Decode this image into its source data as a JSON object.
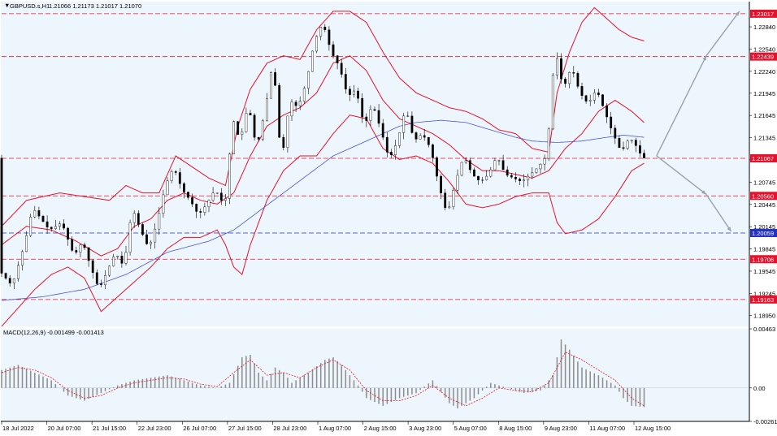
{
  "header": {
    "symbol": "GBPUSD.s,H1",
    "ohlc": "1.21066 1.21173 1.21017 1.21070"
  },
  "macd_panel": {
    "label": "MACD(12,26,9) -0.001499 -0.001413"
  },
  "colors": {
    "panel_bg": "#eef6fd",
    "bollinger": "#e8102a",
    "ma": "#4a55d4",
    "price_level": "#e8102a",
    "support_blue": "#2331c8",
    "arrows": "#9aa0ad",
    "candles": "#000000",
    "macd_signal": "#e8102a",
    "macd_hist": "#8c8c8c"
  },
  "chart_data": [
    {
      "type": "line",
      "subtype": "candlestick",
      "title": "GBPUSD.s,H1",
      "ylim": [
        1.188,
        1.2318
      ],
      "grid": false,
      "price_ticks": [
        "1.22840",
        "1.22540",
        "1.22240",
        "1.21945",
        "1.21645",
        "1.21345",
        "1.21045",
        "1.20745",
        "1.20445",
        "1.20145",
        "1.19845",
        "1.19545",
        "1.19245",
        "1.18950"
      ],
      "time_labels": [
        "18 Jul 2022",
        "20 Jul 07:00",
        "21 Jul 15:00",
        "22 Jul 23:00",
        "26 Jul 07:00",
        "27 Jul 15:00",
        "28 Jul 23:00",
        "1 Aug 07:00",
        "2 Aug 15:00",
        "3 Aug 23:00",
        "5 Aug 07:00",
        "8 Aug 15:00",
        "9 Aug 23:00",
        "11 Aug 07:00",
        "12 Aug 15:00"
      ],
      "levels": [
        {
          "value": 1.23017,
          "label": "1.23017",
          "style": "red"
        },
        {
          "value": 1.22439,
          "label": "1.22439",
          "style": "red"
        },
        {
          "value": 1.21067,
          "label": "1.21067",
          "style": "black"
        },
        {
          "value": 1.2056,
          "label": "1.20560",
          "style": "red"
        },
        {
          "value": 1.20059,
          "label": "1.20059",
          "style": "blue"
        },
        {
          "value": 1.19706,
          "label": "1.19706",
          "style": "red"
        },
        {
          "value": 1.19163,
          "label": "1.19163",
          "style": "red"
        }
      ],
      "price_path": [
        [
          0,
          1.1955
        ],
        [
          3,
          1.1935
        ],
        [
          6,
          1.199
        ],
        [
          8,
          1.204
        ],
        [
          10,
          1.2025
        ],
        [
          12,
          1.201
        ],
        [
          15,
          1.202
        ],
        [
          18,
          1.1975
        ],
        [
          20,
          1.1995
        ],
        [
          22,
          1.196
        ],
        [
          24,
          1.193
        ],
        [
          26,
          1.1955
        ],
        [
          28,
          1.198
        ],
        [
          30,
          1.196
        ],
        [
          32,
          1.204
        ],
        [
          34,
          1.201
        ],
        [
          36,
          1.1985
        ],
        [
          38,
          1.202
        ],
        [
          40,
          1.207
        ],
        [
          42,
          1.2095
        ],
        [
          44,
          1.2065
        ],
        [
          46,
          1.205
        ],
        [
          48,
          1.203
        ],
        [
          50,
          1.2045
        ],
        [
          52,
          1.2065
        ],
        [
          54,
          1.2045
        ],
        [
          55,
          1.206
        ],
        [
          56,
          1.2165
        ],
        [
          58,
          1.213
        ],
        [
          60,
          1.218
        ],
        [
          62,
          1.212
        ],
        [
          64,
          1.217
        ],
        [
          66,
          1.224
        ],
        [
          68,
          1.21
        ],
        [
          70,
          1.2185
        ],
        [
          72,
          1.2175
        ],
        [
          74,
          1.221
        ],
        [
          76,
          1.2265
        ],
        [
          78,
          1.229
        ],
        [
          80,
          1.225
        ],
        [
          82,
          1.223
        ],
        [
          84,
          1.219
        ],
        [
          86,
          1.22
        ],
        [
          88,
          1.215
        ],
        [
          90,
          1.218
        ],
        [
          92,
          1.2145
        ],
        [
          94,
          1.2105
        ],
        [
          96,
          1.213
        ],
        [
          98,
          1.2175
        ],
        [
          100,
          1.213
        ],
        [
          102,
          1.214
        ],
        [
          104,
          1.212
        ],
        [
          106,
          1.207
        ],
        [
          108,
          1.203
        ],
        [
          110,
          1.2075
        ],
        [
          112,
          1.211
        ],
        [
          114,
          1.2085
        ],
        [
          116,
          1.2075
        ],
        [
          118,
          1.2085
        ],
        [
          120,
          1.211
        ],
        [
          122,
          1.2085
        ],
        [
          124,
          1.208
        ],
        [
          126,
          1.2075
        ],
        [
          128,
          1.2085
        ],
        [
          130,
          1.2095
        ],
        [
          132,
          1.211
        ],
        [
          134,
          1.2255
        ],
        [
          136,
          1.22
        ],
        [
          138,
          1.223
        ],
        [
          140,
          1.2195
        ],
        [
          142,
          1.218
        ],
        [
          144,
          1.22
        ],
        [
          146,
          1.217
        ],
        [
          148,
          1.214
        ],
        [
          150,
          1.2115
        ],
        [
          152,
          1.2135
        ],
        [
          154,
          1.212
        ],
        [
          155,
          1.2107
        ]
      ],
      "bollinger_upper": [
        [
          0,
          1.2015
        ],
        [
          6,
          1.205
        ],
        [
          14,
          1.206
        ],
        [
          20,
          1.2055
        ],
        [
          26,
          1.205
        ],
        [
          30,
          1.207
        ],
        [
          34,
          1.206
        ],
        [
          38,
          1.206
        ],
        [
          42,
          1.211
        ],
        [
          46,
          1.2095
        ],
        [
          50,
          1.208
        ],
        [
          54,
          1.207
        ],
        [
          57,
          1.215
        ],
        [
          60,
          1.22
        ],
        [
          64,
          1.2235
        ],
        [
          68,
          1.2245
        ],
        [
          72,
          1.224
        ],
        [
          76,
          1.228
        ],
        [
          80,
          1.2305
        ],
        [
          84,
          1.2305
        ],
        [
          88,
          1.229
        ],
        [
          92,
          1.225
        ],
        [
          96,
          1.2215
        ],
        [
          100,
          1.2195
        ],
        [
          104,
          1.2185
        ],
        [
          108,
          1.2175
        ],
        [
          112,
          1.217
        ],
        [
          116,
          1.216
        ],
        [
          120,
          1.2145
        ],
        [
          124,
          1.214
        ],
        [
          128,
          1.212
        ],
        [
          132,
          1.2115
        ],
        [
          134,
          1.2195
        ],
        [
          137,
          1.225
        ],
        [
          140,
          1.229
        ],
        [
          143,
          1.231
        ],
        [
          146,
          1.2295
        ],
        [
          149,
          1.228
        ],
        [
          152,
          1.227
        ],
        [
          155,
          1.2265
        ]
      ],
      "bollinger_middle": [
        [
          0,
          1.199
        ],
        [
          6,
          1.2015
        ],
        [
          12,
          1.201
        ],
        [
          18,
          1.1995
        ],
        [
          24,
          1.1975
        ],
        [
          28,
          1.1985
        ],
        [
          32,
          1.2015
        ],
        [
          36,
          1.2025
        ],
        [
          40,
          1.205
        ],
        [
          44,
          1.206
        ],
        [
          48,
          1.205
        ],
        [
          52,
          1.2045
        ],
        [
          56,
          1.206
        ],
        [
          60,
          1.211
        ],
        [
          64,
          1.215
        ],
        [
          68,
          1.2165
        ],
        [
          72,
          1.2175
        ],
        [
          76,
          1.2195
        ],
        [
          80,
          1.2235
        ],
        [
          84,
          1.2245
        ],
        [
          88,
          1.2225
        ],
        [
          92,
          1.2185
        ],
        [
          96,
          1.216
        ],
        [
          100,
          1.215
        ],
        [
          104,
          1.214
        ],
        [
          108,
          1.2125
        ],
        [
          112,
          1.2105
        ],
        [
          116,
          1.209
        ],
        [
          120,
          1.209
        ],
        [
          124,
          1.2085
        ],
        [
          128,
          1.208
        ],
        [
          132,
          1.209
        ],
        [
          136,
          1.212
        ],
        [
          140,
          1.214
        ],
        [
          144,
          1.217
        ],
        [
          148,
          1.2185
        ],
        [
          152,
          1.217
        ],
        [
          155,
          1.2155
        ]
      ],
      "bollinger_lower": [
        [
          0,
          1.188
        ],
        [
          4,
          1.1905
        ],
        [
          8,
          1.193
        ],
        [
          12,
          1.195
        ],
        [
          16,
          1.196
        ],
        [
          20,
          1.1945
        ],
        [
          24,
          1.19
        ],
        [
          28,
          1.192
        ],
        [
          32,
          1.194
        ],
        [
          36,
          1.196
        ],
        [
          40,
          1.1985
        ],
        [
          44,
          1.2
        ],
        [
          48,
          1.2
        ],
        [
          52,
          1.201
        ],
        [
          54,
          1.199
        ],
        [
          56,
          1.196
        ],
        [
          58,
          1.195
        ],
        [
          60,
          1.199
        ],
        [
          64,
          1.205
        ],
        [
          68,
          1.209
        ],
        [
          72,
          1.211
        ],
        [
          76,
          1.211
        ],
        [
          80,
          1.214
        ],
        [
          84,
          1.2165
        ],
        [
          88,
          1.216
        ],
        [
          92,
          1.212
        ],
        [
          96,
          1.2105
        ],
        [
          100,
          1.211
        ],
        [
          104,
          1.21
        ],
        [
          108,
          1.2075
        ],
        [
          112,
          1.2045
        ],
        [
          116,
          1.204
        ],
        [
          120,
          1.2045
        ],
        [
          124,
          1.2055
        ],
        [
          128,
          1.206
        ],
        [
          132,
          1.206
        ],
        [
          134,
          1.202
        ],
        [
          136,
          1.2005
        ],
        [
          140,
          1.201
        ],
        [
          144,
          1.2025
        ],
        [
          148,
          1.2055
        ],
        [
          152,
          1.209
        ],
        [
          155,
          1.21
        ]
      ],
      "ma_line": [
        [
          0,
          1.1915
        ],
        [
          10,
          1.192
        ],
        [
          20,
          1.193
        ],
        [
          30,
          1.195
        ],
        [
          40,
          1.198
        ],
        [
          50,
          1.1995
        ],
        [
          56,
          1.201
        ],
        [
          62,
          1.2035
        ],
        [
          68,
          1.206
        ],
        [
          74,
          1.2085
        ],
        [
          80,
          1.211
        ],
        [
          86,
          1.2125
        ],
        [
          92,
          1.214
        ],
        [
          96,
          1.215
        ],
        [
          100,
          1.2155
        ],
        [
          106,
          1.2158
        ],
        [
          112,
          1.2155
        ],
        [
          118,
          1.2145
        ],
        [
          124,
          1.2135
        ],
        [
          128,
          1.213
        ],
        [
          134,
          1.2128
        ],
        [
          140,
          1.213
        ],
        [
          146,
          1.2135
        ],
        [
          150,
          1.2138
        ],
        [
          155,
          1.2135
        ]
      ],
      "arrows": [
        {
          "from": [
            158,
            1.211
          ],
          "to": [
            170,
            1.2245
          ]
        },
        {
          "from": [
            170,
            1.2245
          ],
          "to": [
            178,
            1.2305
          ]
        },
        {
          "from": [
            158,
            1.211
          ],
          "to": [
            170,
            1.2058
          ]
        },
        {
          "from": [
            170,
            1.2058
          ],
          "to": [
            176,
            1.2008
          ]
        }
      ]
    },
    {
      "type": "bar",
      "title": "MACD(12,26,9) -0.001499 -0.001413",
      "ylim": [
        -0.002619,
        0.00463
      ],
      "y_ticks": [
        "0.00463",
        "0.00",
        "-0.002619"
      ],
      "histogram": [
        [
          0,
          0.0014
        ],
        [
          4,
          0.0018
        ],
        [
          8,
          0.0012
        ],
        [
          12,
          0.0006
        ],
        [
          16,
          -0.0006
        ],
        [
          20,
          -0.001
        ],
        [
          24,
          -0.0004
        ],
        [
          28,
          0.0002
        ],
        [
          32,
          0.0006
        ],
        [
          36,
          0.0008
        ],
        [
          40,
          0.001
        ],
        [
          44,
          0.0006
        ],
        [
          48,
          0.0002
        ],
        [
          52,
          0.0
        ],
        [
          55,
          0.0004
        ],
        [
          58,
          0.0024
        ],
        [
          60,
          0.0026
        ],
        [
          62,
          0.0012
        ],
        [
          64,
          0.0006
        ],
        [
          66,
          0.0016
        ],
        [
          68,
          0.0012
        ],
        [
          70,
          0.0004
        ],
        [
          74,
          0.0012
        ],
        [
          78,
          0.0022
        ],
        [
          80,
          0.0024
        ],
        [
          82,
          0.0018
        ],
        [
          84,
          0.001
        ],
        [
          86,
          0.0002
        ],
        [
          88,
          -0.0008
        ],
        [
          92,
          -0.0014
        ],
        [
          96,
          -0.0008
        ],
        [
          100,
          -0.0004
        ],
        [
          104,
          0.0006
        ],
        [
          108,
          -0.0012
        ],
        [
          110,
          -0.0016
        ],
        [
          114,
          -0.0008
        ],
        [
          118,
          0.0004
        ],
        [
          122,
          0.0
        ],
        [
          126,
          -0.0004
        ],
        [
          130,
          -0.0002
        ],
        [
          133,
          0.001
        ],
        [
          135,
          0.0038
        ],
        [
          137,
          0.003
        ],
        [
          140,
          0.0016
        ],
        [
          144,
          0.001
        ],
        [
          148,
          0.0002
        ],
        [
          150,
          -0.0008
        ],
        [
          152,
          -0.0014
        ],
        [
          155,
          -0.0015
        ]
      ],
      "signal": [
        [
          0,
          0.0012
        ],
        [
          4,
          0.0016
        ],
        [
          8,
          0.0014
        ],
        [
          12,
          0.0008
        ],
        [
          16,
          -0.0002
        ],
        [
          20,
          -0.0008
        ],
        [
          24,
          -0.0006
        ],
        [
          28,
          0.0
        ],
        [
          32,
          0.0004
        ],
        [
          36,
          0.0006
        ],
        [
          40,
          0.0008
        ],
        [
          44,
          0.0007
        ],
        [
          48,
          0.0003
        ],
        [
          52,
          0.0001
        ],
        [
          56,
          0.0012
        ],
        [
          60,
          0.0022
        ],
        [
          64,
          0.001
        ],
        [
          68,
          0.0012
        ],
        [
          72,
          0.0008
        ],
        [
          76,
          0.0016
        ],
        [
          80,
          0.0022
        ],
        [
          84,
          0.0014
        ],
        [
          88,
          -0.0002
        ],
        [
          92,
          -0.001
        ],
        [
          96,
          -0.001
        ],
        [
          100,
          -0.0006
        ],
        [
          104,
          0.0002
        ],
        [
          108,
          -0.0008
        ],
        [
          112,
          -0.0014
        ],
        [
          116,
          -0.0008
        ],
        [
          120,
          0.0
        ],
        [
          124,
          -0.0002
        ],
        [
          128,
          -0.0003
        ],
        [
          132,
          0.0004
        ],
        [
          136,
          0.0028
        ],
        [
          140,
          0.0022
        ],
        [
          144,
          0.0014
        ],
        [
          148,
          0.0006
        ],
        [
          152,
          -0.0008
        ],
        [
          155,
          -0.0014
        ]
      ]
    }
  ]
}
